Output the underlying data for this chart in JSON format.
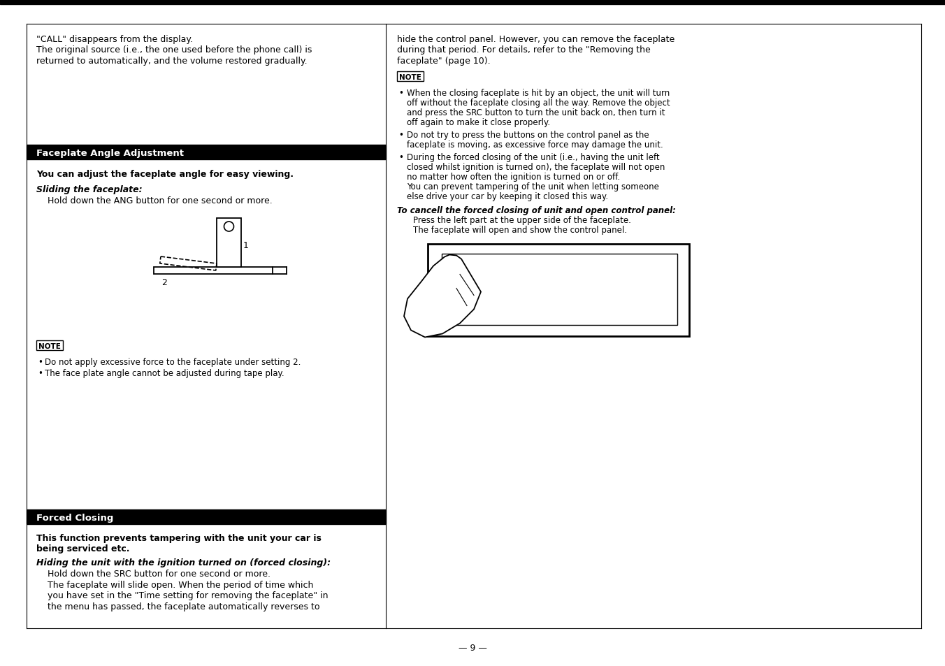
{
  "bg_color": "#ffffff",
  "text_color": "#000000",
  "page_number": "9",
  "left_col_intro": [
    "\"CALL\" disappears from the display.",
    "The original source (i.e., the one used before the phone call) is",
    "returned to automatically, and the volume restored gradually."
  ],
  "section1_header": "Faceplate Angle Adjustment",
  "section1_bold": "You can adjust the faceplate angle for easy viewing.",
  "sliding_label": "Sliding the faceplate:",
  "sliding_text": "Hold down the ANG button for one second or more.",
  "note_label": "NOTE",
  "left_note_bullets": [
    "Do not apply excessive force to the faceplate under setting 2.",
    "The face plate angle cannot be adjusted during tape play."
  ],
  "section2_header": "Forced Closing",
  "section2_bold1": "This function prevents tampering with the unit your car is",
  "section2_bold2": "being serviced etc.",
  "hiding_label": "Hiding the unit with the ignition turned on (forced closing):",
  "hiding_text": [
    "Hold down the SRC button for one second or more.",
    "The faceplate will slide open. When the period of time which",
    "you have set in the \"Time setting for removing the faceplate\" in",
    "the menu has passed, the faceplate automatically reverses to"
  ],
  "right_col_intro": [
    "hide the control panel. However, you can remove the faceplate",
    "during that period. For details, refer to the \"Removing the",
    "faceplate\" (page 10)."
  ],
  "right_bullet1": [
    "When the closing faceplate is hit by an object, the unit will turn",
    "off without the faceplate closing all the way. Remove the object",
    "and press the SRC button to turn the unit back on, then turn it",
    "off again to make it close properly."
  ],
  "right_bullet2": [
    "Do not try to press the buttons on the control panel as the",
    "faceplate is moving, as excessive force may damage the unit."
  ],
  "right_bullet3": [
    "During the forced closing of the unit (i.e., having the unit left",
    "closed whilst ignition is turned on), the faceplate will not open",
    "no matter how often the ignition is turned on or off.",
    "You can prevent tampering of the unit when letting someone",
    "else drive your car by keeping it closed this way."
  ],
  "cancel_label": "To cancell the forced closing of unit and open control panel:",
  "press_text": [
    "Press the left part at the upper side of the faceplate.",
    "The faceplate will open and show the control panel."
  ]
}
